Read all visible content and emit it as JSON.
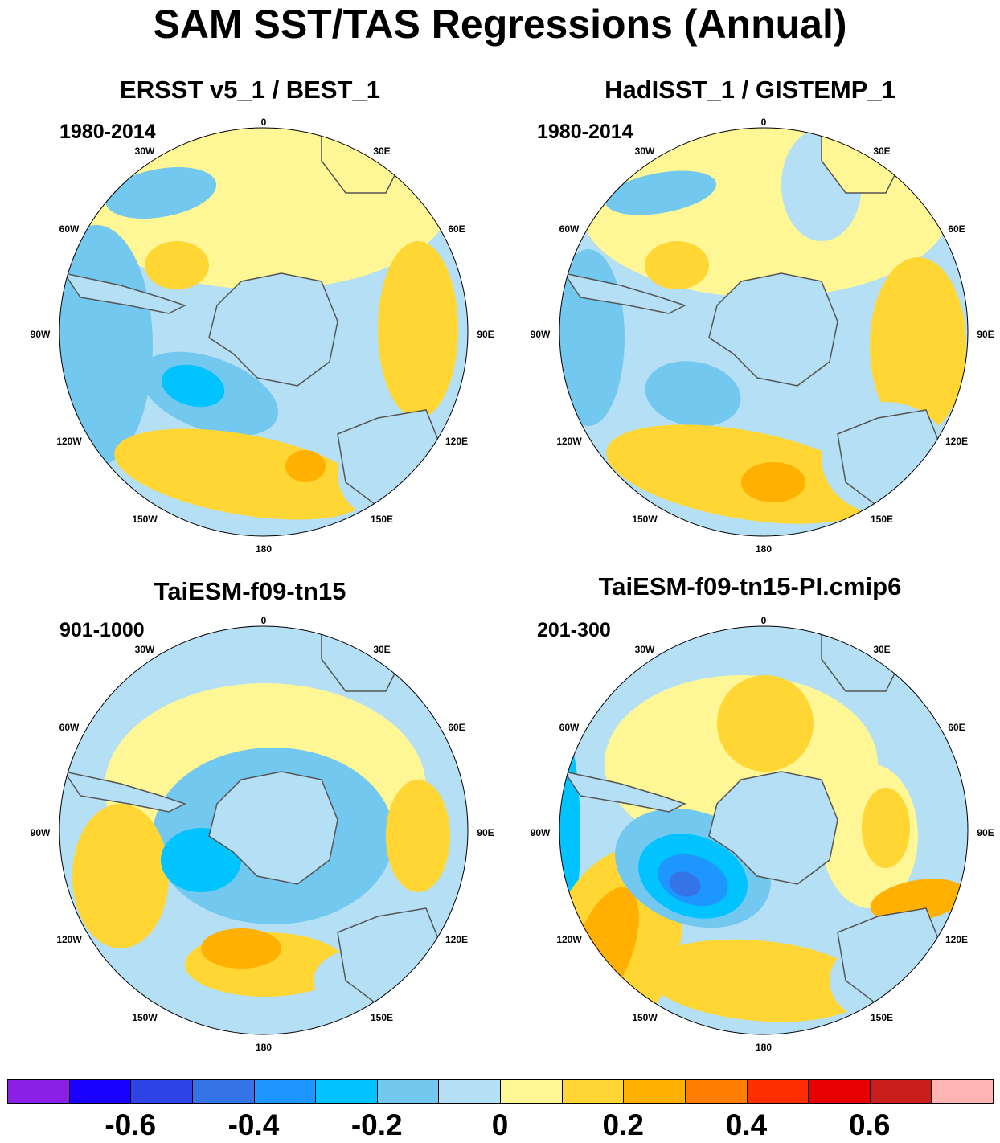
{
  "title": "SAM SST/TAS Regressions (Annual)",
  "lon_labels": [
    "0",
    "30E",
    "60E",
    "90E",
    "120E",
    "150E",
    "180",
    "150W",
    "120W",
    "90W",
    "60W",
    "30W"
  ],
  "panels": [
    {
      "id": "ersst",
      "title": "ERSST v5_1 / BEST_1",
      "period": "1980-2014"
    },
    {
      "id": "hadisst",
      "title": "HadISST_1 / GISTEMP_1",
      "period": "1980-2014"
    },
    {
      "id": "taiesm",
      "title": "TaiESM-f09-tn15",
      "period": "901-1000"
    },
    {
      "id": "taiesm-pi",
      "title": "TaiESM-f09-tn15-PI.cmip6",
      "period": "201-300"
    }
  ],
  "colorbar": {
    "colors": [
      "#8a1fe6",
      "#1a00ff",
      "#2e44e6",
      "#3574e6",
      "#1e96ff",
      "#00c3ff",
      "#73c8f0",
      "#b4dff4",
      "#fff695",
      "#ffd633",
      "#ffb000",
      "#ff7d00",
      "#ff2d00",
      "#e60000",
      "#c81e1e",
      "#ffb4b4"
    ],
    "labels": [
      "-0.6",
      "-0.4",
      "-0.2",
      "0",
      "0.2",
      "0.4",
      "0.6"
    ]
  }
}
